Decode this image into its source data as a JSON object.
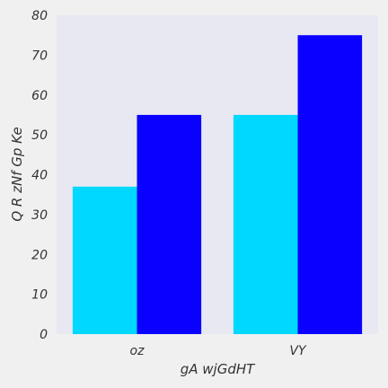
{
  "chart_data": {
    "type": "bar",
    "categories": [
      "oz",
      "VY"
    ],
    "series": [
      {
        "values": [
          37,
          55
        ],
        "color": "#00d8ff"
      },
      {
        "values": [
          55,
          75
        ],
        "color": "#0a00ff"
      }
    ],
    "xlabel": "gA wjGdHT",
    "ylabel": "Q R zNf Gp Ke",
    "ylim": [
      0,
      80
    ],
    "yticks": [
      0,
      10,
      20,
      30,
      40,
      50,
      60,
      70,
      80
    ],
    "grid": false,
    "plot_background": "#e8e8f2",
    "page_background": "#f0f0f0"
  }
}
